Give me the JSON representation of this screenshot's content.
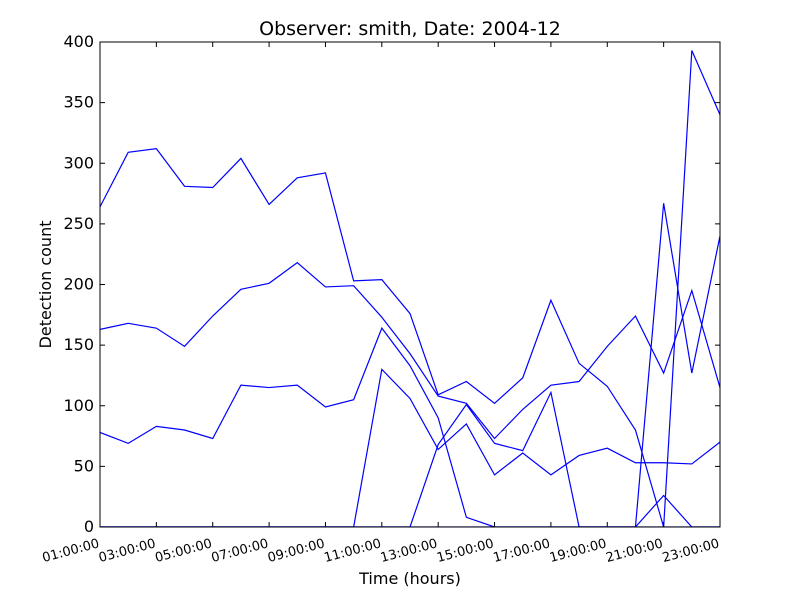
{
  "chart_data": {
    "type": "line",
    "title": "Observer: smith, Date: 2004-12",
    "xlabel": "Time (hours)",
    "ylabel": "Detection count",
    "xlim": [
      1,
      23
    ],
    "ylim": [
      0,
      400
    ],
    "x": [
      1,
      2,
      3,
      4,
      5,
      6,
      7,
      8,
      9,
      10,
      11,
      12,
      13,
      14,
      15,
      16,
      17,
      18,
      19,
      20,
      21,
      22,
      23
    ],
    "xtick_values": [
      1,
      3,
      5,
      7,
      9,
      11,
      13,
      15,
      17,
      19,
      21,
      23
    ],
    "xtick_labels": [
      "01:00:00",
      "03:00:00",
      "05:00:00",
      "07:00:00",
      "09:00:00",
      "11:00:00",
      "13:00:00",
      "15:00:00",
      "17:00:00",
      "19:00:00",
      "21:00:00",
      "23:00:00"
    ],
    "ytick_values": [
      0,
      50,
      100,
      150,
      200,
      250,
      300,
      350,
      400
    ],
    "ytick_labels": [
      "0",
      "50",
      "100",
      "150",
      "200",
      "250",
      "300",
      "350",
      "400"
    ],
    "grid": false,
    "line_color": "#0000ff",
    "series": [
      {
        "values": [
          264,
          309,
          312,
          281,
          280,
          304,
          266,
          288,
          292,
          203,
          204,
          176,
          109,
          120,
          102,
          123,
          187,
          135,
          116,
          80,
          0,
          0,
          0
        ]
      },
      {
        "values": [
          163,
          168,
          164,
          149,
          174,
          196,
          201,
          218,
          198,
          199,
          173,
          143,
          108,
          102,
          73,
          97,
          117,
          120,
          149,
          174,
          127,
          195,
          115
        ]
      },
      {
        "values": [
          78,
          69,
          83,
          80,
          73,
          117,
          115,
          117,
          99,
          105,
          164,
          133,
          90,
          8,
          0,
          0,
          0,
          0,
          0,
          0,
          26,
          0,
          0
        ]
      },
      {
        "values": [
          0,
          0,
          0,
          0,
          0,
          0,
          0,
          0,
          0,
          0,
          130,
          106,
          64,
          85,
          43,
          61,
          43,
          59,
          65,
          53,
          53,
          52,
          70
        ]
      },
      {
        "values": [
          0,
          0,
          0,
          0,
          0,
          0,
          0,
          0,
          0,
          0,
          0,
          0,
          68,
          101,
          69,
          63,
          111,
          0,
          0,
          0,
          267,
          127,
          240
        ]
      },
      {
        "values": [
          0,
          0,
          0,
          0,
          0,
          0,
          0,
          0,
          0,
          0,
          0,
          0,
          0,
          0,
          0,
          0,
          0,
          0,
          0,
          0,
          0,
          393,
          340
        ]
      }
    ]
  }
}
